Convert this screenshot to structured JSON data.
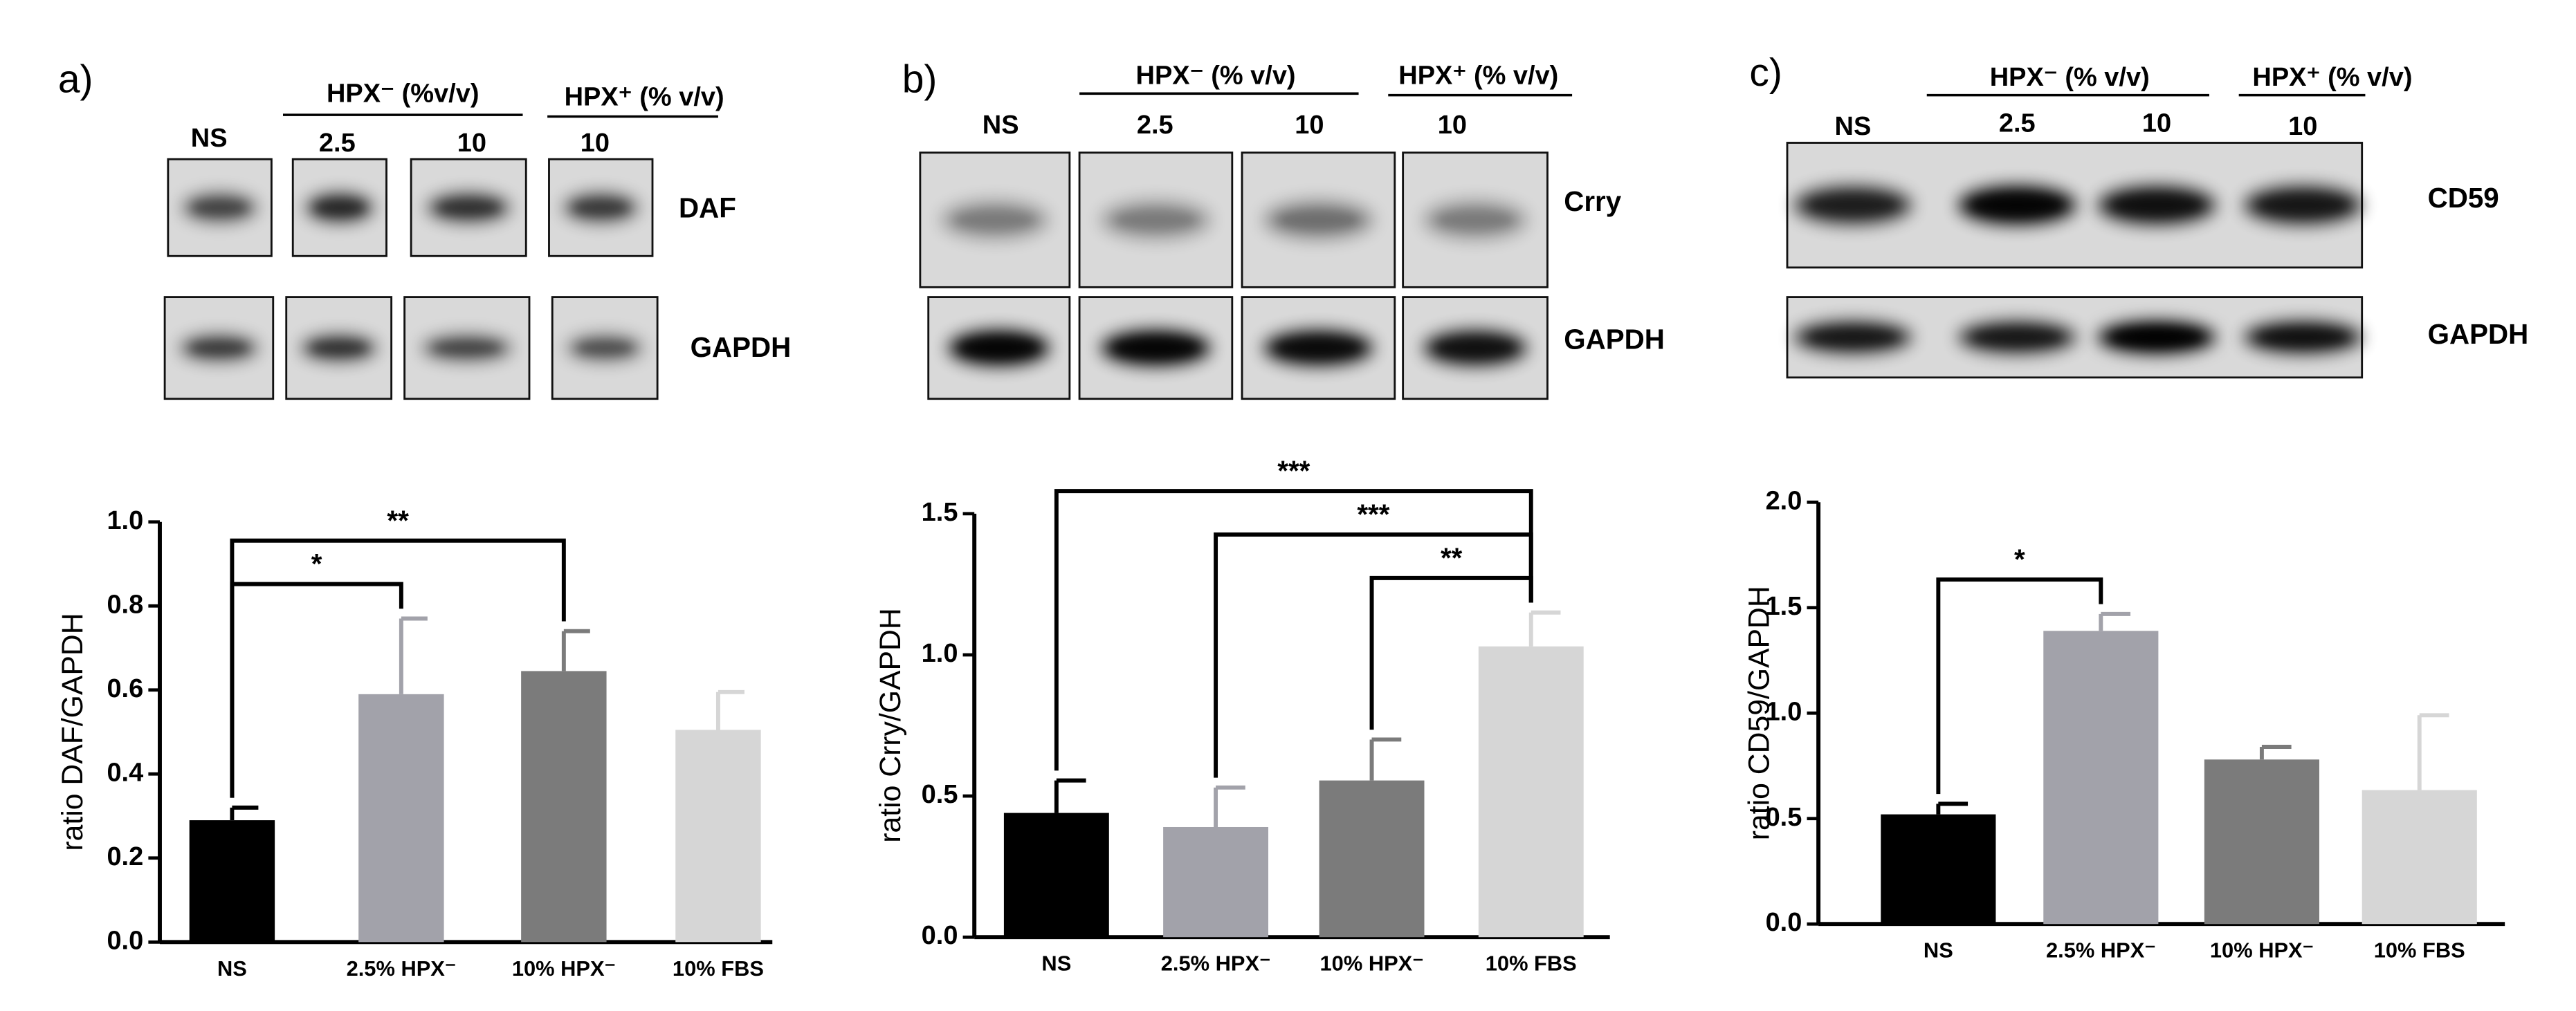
{
  "panels": [
    {
      "label": "a)",
      "header_minus": "HPX⁻ (%v/v)",
      "header_plus": "HPX⁺ (% v/v)",
      "lanes": [
        "NS",
        "2.5",
        "10",
        "10"
      ],
      "rows": [
        "DAF",
        "GAPDH"
      ]
    },
    {
      "label": "b)",
      "header_minus": "HPX⁻ (% v/v)",
      "header_plus": "HPX⁺ (% v/v)",
      "lanes": [
        "NS",
        "2.5",
        "10",
        "10"
      ],
      "rows": [
        "Crry",
        "GAPDH"
      ]
    },
    {
      "label": "c)",
      "header_minus": "HPX⁻ (% v/v)",
      "header_plus": "HPX⁺ (% v/v)",
      "lanes": [
        "NS",
        "2.5",
        "10",
        "10"
      ],
      "rows": [
        "CD59",
        "GAPDH"
      ]
    }
  ],
  "chart_data": [
    {
      "type": "bar",
      "y_label": "ratio DAF/GAPDH",
      "categories": [
        "NS",
        "2.5% HPX⁻",
        "10% HPX⁻",
        "10% FBS"
      ],
      "values": [
        0.29,
        0.59,
        0.645,
        0.505
      ],
      "errors": [
        0.03,
        0.18,
        0.095,
        0.09
      ],
      "colors": [
        "#000000",
        "#a2a2aa",
        "#7b7b7b",
        "#d6d6d6"
      ],
      "ylim": [
        0,
        1.0
      ],
      "yticks": [
        {
          "value": 0,
          "label": "0.0"
        },
        0.2,
        0.4,
        0.6,
        0.8,
        {
          "value": 1.0,
          "label": "1.0"
        }
      ],
      "annotations": [
        {
          "text": "**",
          "between": [
            "NS",
            "10% HPX⁻"
          ]
        },
        {
          "text": "*",
          "between": [
            "NS",
            "2.5% HPX⁻"
          ]
        }
      ]
    },
    {
      "type": "bar",
      "y_label": "ratio Crry/GAPDH",
      "categories": [
        "NS",
        "2.5% HPX⁻",
        "10% HPX⁻",
        "10% FBS"
      ],
      "values": [
        0.44,
        0.39,
        0.555,
        1.03
      ],
      "errors": [
        0.115,
        0.14,
        0.145,
        0.12
      ],
      "colors": [
        "#000000",
        "#a2a2aa",
        "#7b7b7b",
        "#d6d6d6"
      ],
      "ylim": [
        0,
        1.5
      ],
      "yticks": [
        {
          "value": 0,
          "label": "0.0"
        },
        0.5,
        {
          "value": 1.0,
          "label": "1.0"
        },
        1.5
      ],
      "annotations": [
        {
          "text": "***",
          "between": [
            "NS",
            "10% FBS"
          ]
        },
        {
          "text": "***",
          "between": [
            "2.5% HPX⁻",
            "10% FBS"
          ]
        },
        {
          "text": "**",
          "between": [
            "10% HPX⁻",
            "10% FBS"
          ]
        }
      ]
    },
    {
      "type": "bar",
      "y_label": "ratio CD59/GAPDH",
      "categories": [
        "NS",
        "2.5% HPX⁻",
        "10% HPX⁻",
        "10% FBS"
      ],
      "values": [
        0.52,
        1.39,
        0.78,
        0.635
      ],
      "errors": [
        0.05,
        0.08,
        0.06,
        0.355
      ],
      "colors": [
        "#000000",
        "#a2a2aa",
        "#7b7b7b",
        "#d6d6d6"
      ],
      "ylim": [
        0,
        2.0
      ],
      "yticks": [
        {
          "value": 0,
          "label": "0.0"
        },
        0.5,
        {
          "value": 1.0,
          "label": "1.0"
        },
        1.5,
        {
          "value": 2.0,
          "label": "2.0"
        }
      ],
      "annotations": [
        {
          "text": "*",
          "between": [
            "NS",
            "2.5% HPX⁻"
          ]
        }
      ]
    }
  ]
}
